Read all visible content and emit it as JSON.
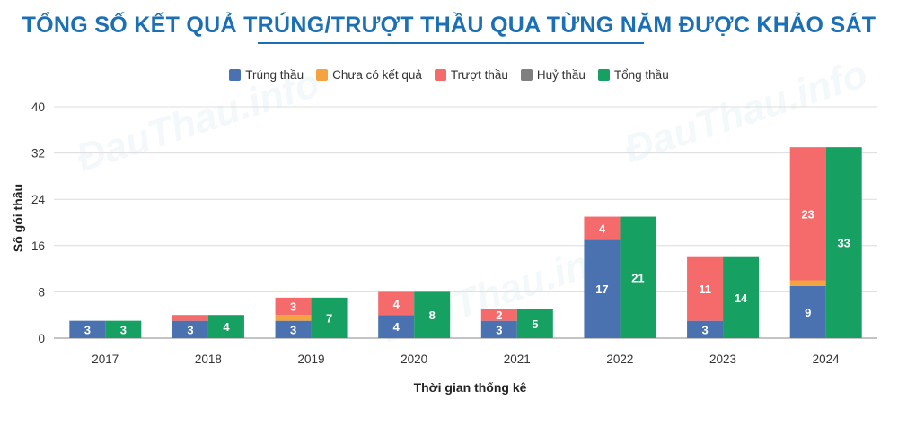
{
  "title": "TỔNG SỐ KẾT QUẢ TRÚNG/TRƯỢT THẦU QUA TỪNG NĂM ĐƯỢC KHẢO SÁT",
  "watermark": "ĐauThau.info",
  "chart_data": {
    "type": "bar",
    "stacked": true,
    "categories": [
      "2017",
      "2018",
      "2019",
      "2020",
      "2021",
      "2022",
      "2023",
      "2024"
    ],
    "series": [
      {
        "name": "Trúng thầu",
        "color": "#4a72b0",
        "stack": "ket-qua",
        "values": [
          3,
          3,
          3,
          4,
          3,
          17,
          3,
          9
        ]
      },
      {
        "name": "Chưa có kết quả",
        "color": "#f4a340",
        "stack": "ket-qua",
        "values": [
          0,
          0,
          1,
          0,
          0,
          0,
          0,
          1
        ]
      },
      {
        "name": "Trượt thầu",
        "color": "#f56b6b",
        "stack": "ket-qua",
        "values": [
          0,
          1,
          3,
          4,
          2,
          4,
          11,
          23
        ]
      },
      {
        "name": "Huỷ thầu",
        "color": "#7f7f7f",
        "stack": "ket-qua",
        "values": [
          0,
          0,
          0,
          0,
          0,
          0,
          0,
          0
        ]
      },
      {
        "name": "Tổng thầu",
        "color": "#16a062",
        "stack": "tong",
        "values": [
          3,
          4,
          7,
          8,
          5,
          21,
          14,
          33
        ]
      }
    ],
    "data_labels": {
      "Trúng thầu": [
        "3",
        "3",
        "3",
        "4",
        "3",
        "17",
        "3",
        "9"
      ],
      "Trượt thầu": [
        "",
        "",
        "3",
        "4",
        "2",
        "4",
        "11",
        "23"
      ],
      "Tổng thầu": [
        "3",
        "4",
        "7",
        "8",
        "5",
        "21",
        "14",
        "33"
      ]
    },
    "xlabel": "Thời gian thống kê",
    "ylabel": "Số gói thầu",
    "ylim": [
      0,
      40
    ],
    "yticks": [
      0,
      8,
      16,
      24,
      32,
      40
    ],
    "grid": true,
    "legend_position": "top"
  }
}
